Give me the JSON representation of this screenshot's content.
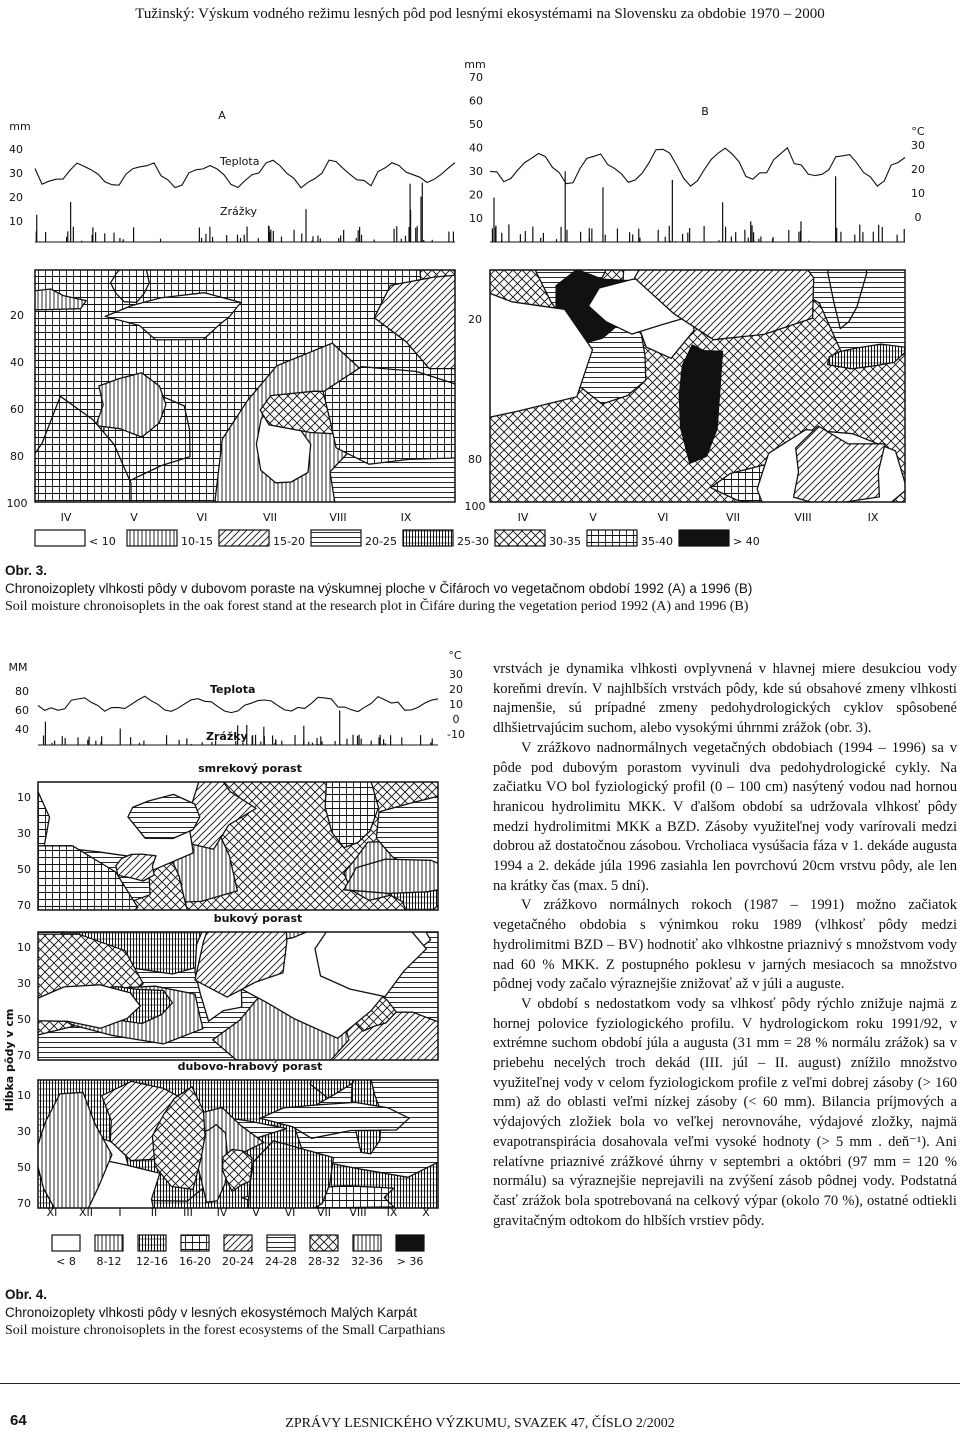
{
  "header": {
    "title": "Tužinský: Výskum vodného režimu lesných pôd pod lesnými ekosystémami na Slovensku za obdobie 1970 – 2000"
  },
  "figure3": {
    "panel_a": "A",
    "panel_b": "B",
    "unit_mm_a": "mm",
    "yticks_a": [
      "40",
      "30",
      "20",
      "10"
    ],
    "teplota": "Teplota",
    "zrazky": "Zrážky",
    "unit_mm_b": "mm",
    "yticks_b": [
      "70",
      "60",
      "50",
      "40",
      "30",
      "20",
      "10"
    ],
    "unit_c": "°C",
    "y2ticks_b": [
      "30",
      "20",
      "10",
      "0"
    ],
    "depth_a": [
      "20",
      "40",
      "60",
      "80",
      "100"
    ],
    "depth_b": [
      "20",
      "80",
      "100"
    ],
    "months_a": [
      "IV",
      "V",
      "VI",
      "VII",
      "VIII",
      "IX"
    ],
    "months_b": [
      "IV",
      "V",
      "VI",
      "VII",
      "VIII",
      "IX"
    ],
    "legend": [
      "< 10",
      "10-15",
      "15-20",
      "20-25",
      "25-30",
      "30-35",
      "35-40",
      "> 40"
    ]
  },
  "caption3": {
    "label": "Obr. 3.",
    "sk": "Chronoizoplety vlhkosti pôdy v dubovom poraste na výskumnej ploche v Čifároch vo vegetačnom období 1992 (A) a 1996 (B)",
    "en": "Soil moisture chronoisoplets in the oak forest stand at the research plot in Čifáre during the vegetation period 1992 (A) and 1996 (B)"
  },
  "figure4": {
    "unit_mm": "MM",
    "yticks": [
      "80",
      "60",
      "40"
    ],
    "unit_c": "°C",
    "y2ticks": [
      "30",
      "20",
      "10",
      "0",
      "-10"
    ],
    "teplota": "Teplota",
    "zrazky": "Zrážky",
    "stands": [
      "smrekový porast",
      "bukový porast",
      "dubovo-hrabový porast"
    ],
    "depth": [
      "10",
      "30",
      "50",
      "70"
    ],
    "depth_axis_label": "Hĺbka pôdy v cm",
    "months": [
      "XI",
      "XII",
      "I",
      "II",
      "III",
      "IV",
      "V",
      "VI",
      "VII",
      "VIII",
      "IX",
      "X"
    ],
    "legend": [
      "< 8",
      "8-12",
      "12-16",
      "16-20",
      "20-24",
      "24-28",
      "28-32",
      "32-36",
      "> 36"
    ]
  },
  "caption4": {
    "label": "Obr. 4.",
    "sk": "Chronoizoplety vlhkosti pôdy v lesných ekosystémoch Malých Karpát",
    "en": "Soil moisture chronoisoplets in the forest ecosystems of the Small Carpathians"
  },
  "body": {
    "paragraphs": [
      "vrstvách je dynamika vlhkosti ovplyvnená v hlavnej miere desukciou vody koreňmi drevín. V najhlbších vrstvách pôdy, kde sú obsahové zmeny vlhkosti najmenšie, sú prípadné zmeny pedohydrologických cyklov spôsobené dlhšietrvajúcim suchom, alebo vysokými úhrnmi zrážok (obr. 3).",
      "V zrážkovo nadnormálnych vegetačných obdobiach (1994 – 1996) sa v pôde pod dubovým porastom vyvinuli dva pedohydrologické cykly. Na začiatku VO bol fyziologický profil (0 – 100 cm) nasýtený vodou nad hornou hranicou hydrolimitu MKK. V ďalšom období sa udržovala vlhkosť pôdy medzi hydrolimitmi MKK a BZD. Zásoby využiteľnej vody varírovali medzi dobrou až dostatočnou zásobou. Vrcholiaca vysúšacia fáza v 1. dekáde augusta 1994 a 2. dekáde júla 1996 zasiahla len povrchovú 20cm vrstvu pôdy, ale len na krátky čas (max. 5 dní).",
      "V zrážkovo normálnych rokoch (1987 – 1991) možno začiatok vegetačného obdobia s výnimkou roku 1989 (vlhkosť pôdy medzi hydrolimitmi BZD – BV) hodnotiť ako vlhkostne priaznivý s množstvom vody nad 60 % MKK. Z postupného poklesu v jarných mesiacoch sa množstvo pôdnej vody začalo výraznejšie znižovať až v júli a auguste.",
      "V období s nedostatkom vody sa vlhkosť pôdy rýchlo znižuje najmä z hornej polovice fyziologického profilu. V hydrologickom roku 1991/92, v extrémne suchom období júla a augusta (31 mm = 28 % normálu zrážok) sa v priebehu necelých troch dekád (III. júl – II. august) znížilo množstvo využiteľnej vody v celom fyziologickom profile z veľmi dobrej zásoby (> 160 mm) až do oblasti veľmi nízkej zásoby (< 60 mm). Bilancia príjmových a výdajových zložiek bola vo veľkej nerovnováhe, výdajové zložky, najmä evapotranspirácia dosahovala veľmi vysoké hodnoty (> 5 mm . deň⁻¹). Ani relatívne priaznivé zrážkové úhrny v septembri a októbri (97 mm = 120 % normálu) sa výraznejšie neprejavili na zvýšení zásob pôdnej vody. Podstatná časť zrážok bola spotrebovaná na celkový výpar (okolo 70 %), ostatné odtiekli gravitačným odtokom do hlbších vrstiev pôdy."
    ]
  },
  "footer": {
    "page": "64",
    "journal": "ZPRÁVY LESNICKÉHO VÝZKUMU, SVAZEK 47, ČÍSLO 2/2002"
  }
}
